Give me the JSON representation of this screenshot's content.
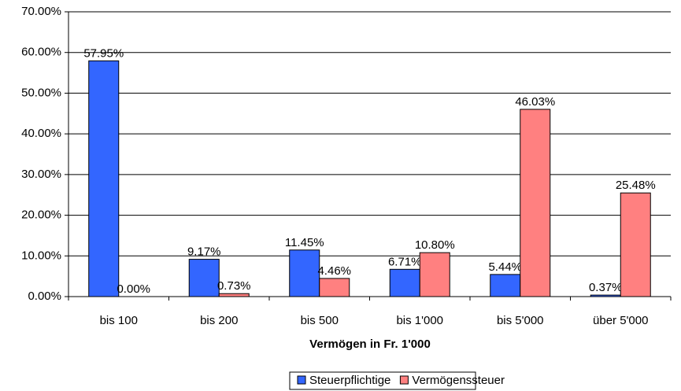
{
  "chart_data": {
    "type": "bar",
    "x_label": "Vermögen in Fr. 1'000",
    "categories": [
      "bis 100",
      "bis 200",
      "bis  500",
      "bis 1'000",
      "bis 5'000",
      "über 5'000"
    ],
    "series": [
      {
        "name": "Steuerpflichtige",
        "color": "#3366ff",
        "values": [
          57.95,
          9.17,
          11.45,
          6.71,
          5.44,
          0.37
        ],
        "value_labels": [
          "57.95%",
          "9.17%",
          "11.45%",
          "6.71%",
          "5.44%",
          "0.37%"
        ]
      },
      {
        "name": "Vermögenssteuer",
        "color": "#ff8080",
        "values": [
          0.0,
          0.73,
          4.46,
          10.8,
          46.03,
          25.48
        ],
        "value_labels": [
          "0.00%",
          "0.73%",
          "4.46%",
          "10.80%",
          "46.03%",
          "25.48%"
        ]
      }
    ],
    "ylim": [
      0,
      70
    ],
    "yticks": [
      {
        "value": 0,
        "label": "0.00%"
      },
      {
        "value": 10,
        "label": "10.00%"
      },
      {
        "value": 20,
        "label": "20.00%"
      },
      {
        "value": 30,
        "label": "30.00%"
      },
      {
        "value": 40,
        "label": "40.00%"
      },
      {
        "value": 50,
        "label": "50.00%"
      },
      {
        "value": 60,
        "label": "60.00%"
      },
      {
        "value": 70,
        "label": "70.00%"
      }
    ],
    "grid": true
  }
}
